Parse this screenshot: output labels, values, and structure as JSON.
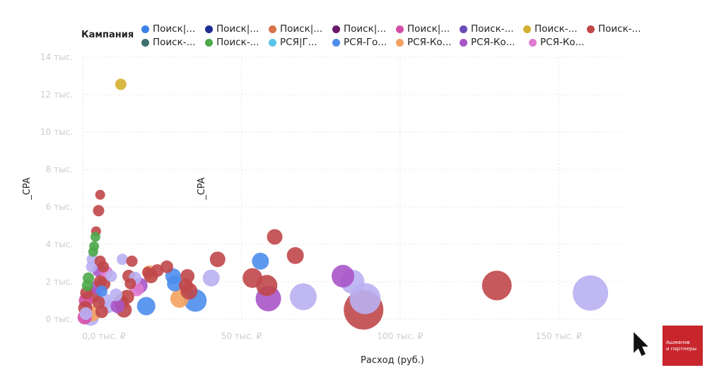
{
  "legend": {
    "title": "Кампания",
    "items": [
      {
        "label": "Поиск|...",
        "color": "#3b82e8"
      },
      {
        "label": "Поиск|...",
        "color": "#1f2f8f"
      },
      {
        "label": "Поиск|...",
        "color": "#d9734a"
      },
      {
        "label": "Поиск|...",
        "color": "#6a1a6a"
      },
      {
        "label": "Поиск|...",
        "color": "#d44ea7"
      },
      {
        "label": "Поиск-...",
        "color": "#6a4bb8"
      },
      {
        "label": "Поиск-...",
        "color": "#d4b030"
      },
      {
        "label": "Поиск-...",
        "color": "#c0474a"
      },
      {
        "label": "Поиск-...",
        "color": "#3e7070"
      },
      {
        "label": "Поиск-...",
        "color": "#4ca84a"
      },
      {
        "label": "РСЯ|Г...",
        "color": "#5cc4e8"
      },
      {
        "label": "РСЯ-Го...",
        "color": "#4d8ded"
      },
      {
        "label": "РСЯ-Ко...",
        "color": "#f4a261"
      },
      {
        "label": "РСЯ-Ко...",
        "color": "#a855c8"
      },
      {
        "label": "РСЯ-Ко...",
        "color": "#e07ad0"
      }
    ]
  },
  "logo": {
    "line1": "Ашманов",
    "line2": "и партнеры"
  },
  "chart_data": {
    "type": "scatter",
    "xlabel": "Расход (руб.)",
    "ylabel": "_CPA",
    "inner_label": "_CPA",
    "xlim": [
      0,
      170000
    ],
    "ylim": [
      0,
      14000
    ],
    "xticks": [
      {
        "value": 0,
        "label": "0,0 тыс. ₽"
      },
      {
        "value": 50000,
        "label": "50 тыс. ₽"
      },
      {
        "value": 100000,
        "label": "100 тыс. ₽"
      },
      {
        "value": 150000,
        "label": "150 тыс. ₽"
      }
    ],
    "yticks": [
      {
        "value": 0,
        "label": "0 тыс."
      },
      {
        "value": 2000,
        "label": "2 тыс."
      },
      {
        "value": 4000,
        "label": "4 тыс."
      },
      {
        "value": 6000,
        "label": "6 тыс."
      },
      {
        "value": 8000,
        "label": "8 тыс."
      },
      {
        "value": 10000,
        "label": "10 тыс."
      },
      {
        "value": 12000,
        "label": "12 тыс."
      },
      {
        "value": 14000,
        "label": "14 тыс."
      }
    ],
    "grid": true,
    "legend_position": "top",
    "points": [
      {
        "x": 12000,
        "y": 12550,
        "size": 8,
        "color": "#d4b030"
      },
      {
        "x": 5500,
        "y": 6650,
        "size": 7,
        "color": "#c0474a"
      },
      {
        "x": 5000,
        "y": 5800,
        "size": 8,
        "color": "#c0474a"
      },
      {
        "x": 4200,
        "y": 4700,
        "size": 7,
        "color": "#c0474a"
      },
      {
        "x": 4000,
        "y": 4400,
        "size": 7,
        "color": "#4ca84a"
      },
      {
        "x": 3600,
        "y": 3900,
        "size": 7,
        "color": "#4ca84a"
      },
      {
        "x": 3300,
        "y": 3600,
        "size": 7,
        "color": "#4ca84a"
      },
      {
        "x": 3000,
        "y": 3200,
        "size": 8,
        "color": "#b9b0f2"
      },
      {
        "x": 2800,
        "y": 2800,
        "size": 8,
        "color": "#b9b0f2"
      },
      {
        "x": 1800,
        "y": 2200,
        "size": 8,
        "color": "#4ca84a"
      },
      {
        "x": 1500,
        "y": 1800,
        "size": 8,
        "color": "#4ca84a"
      },
      {
        "x": 1200,
        "y": 1400,
        "size": 9,
        "color": "#c0474a"
      },
      {
        "x": 1000,
        "y": 1000,
        "size": 10,
        "color": "#d44ea7"
      },
      {
        "x": 800,
        "y": 600,
        "size": 10,
        "color": "#c0474a"
      },
      {
        "x": 1000,
        "y": 300,
        "size": 9,
        "color": "#b9b0f2"
      },
      {
        "x": 600,
        "y": 100,
        "size": 10,
        "color": "#d44ea7"
      },
      {
        "x": 5500,
        "y": 3100,
        "size": 8,
        "color": "#c0474a"
      },
      {
        "x": 6500,
        "y": 2800,
        "size": 8,
        "color": "#c0474a"
      },
      {
        "x": 5000,
        "y": 2600,
        "size": 9,
        "color": "#a855c8"
      },
      {
        "x": 7500,
        "y": 2500,
        "size": 9,
        "color": "#e07ad0"
      },
      {
        "x": 9000,
        "y": 2300,
        "size": 8,
        "color": "#b9b0f2"
      },
      {
        "x": 5500,
        "y": 2000,
        "size": 9,
        "color": "#c0474a"
      },
      {
        "x": 6500,
        "y": 1900,
        "size": 10,
        "color": "#c0474a"
      },
      {
        "x": 4500,
        "y": 1700,
        "size": 10,
        "color": "#a855c8"
      },
      {
        "x": 6000,
        "y": 1500,
        "size": 8,
        "color": "#4d8ded"
      },
      {
        "x": 3500,
        "y": 1300,
        "size": 11,
        "color": "#c0474a"
      },
      {
        "x": 5000,
        "y": 900,
        "size": 9,
        "color": "#c0474a"
      },
      {
        "x": 7000,
        "y": 1000,
        "size": 10,
        "color": "#b9b0f2"
      },
      {
        "x": 8000,
        "y": 700,
        "size": 10,
        "color": "#b9b0f2"
      },
      {
        "x": 6000,
        "y": 400,
        "size": 9,
        "color": "#c0474a"
      },
      {
        "x": 3000,
        "y": 300,
        "size": 11,
        "color": "#f4a261"
      },
      {
        "x": 2500,
        "y": 100,
        "size": 12,
        "color": "#b9b0f2"
      },
      {
        "x": 12500,
        "y": 3200,
        "size": 8,
        "color": "#b9b0f2"
      },
      {
        "x": 15500,
        "y": 3100,
        "size": 8,
        "color": "#c0474a"
      },
      {
        "x": 14500,
        "y": 2300,
        "size": 9,
        "color": "#c0474a"
      },
      {
        "x": 16500,
        "y": 2200,
        "size": 9,
        "color": "#b9b0f2"
      },
      {
        "x": 15000,
        "y": 1900,
        "size": 8,
        "color": "#c0474a"
      },
      {
        "x": 18000,
        "y": 1800,
        "size": 11,
        "color": "#a855c8"
      },
      {
        "x": 17000,
        "y": 1600,
        "size": 10,
        "color": "#e07ad0"
      },
      {
        "x": 10500,
        "y": 1300,
        "size": 9,
        "color": "#b9b0f2"
      },
      {
        "x": 14000,
        "y": 1200,
        "size": 10,
        "color": "#c0474a"
      },
      {
        "x": 12000,
        "y": 900,
        "size": 11,
        "color": "#c0474a"
      },
      {
        "x": 11000,
        "y": 700,
        "size": 10,
        "color": "#a855c8"
      },
      {
        "x": 13000,
        "y": 500,
        "size": 11,
        "color": "#c0474a"
      },
      {
        "x": 20500,
        "y": 2500,
        "size": 8,
        "color": "#c0474a"
      },
      {
        "x": 21000,
        "y": 2500,
        "size": 10,
        "color": "#f4a261"
      },
      {
        "x": 21500,
        "y": 2300,
        "size": 10,
        "color": "#c0474a"
      },
      {
        "x": 23500,
        "y": 2600,
        "size": 9,
        "color": "#c0474a"
      },
      {
        "x": 26500,
        "y": 2800,
        "size": 9,
        "color": "#c0474a"
      },
      {
        "x": 28500,
        "y": 2300,
        "size": 11,
        "color": "#4d8ded"
      },
      {
        "x": 29000,
        "y": 1900,
        "size": 11,
        "color": "#4d8ded"
      },
      {
        "x": 20000,
        "y": 700,
        "size": 13,
        "color": "#4d8ded"
      },
      {
        "x": 30500,
        "y": 1100,
        "size": 13,
        "color": "#f4a261"
      },
      {
        "x": 33000,
        "y": 2300,
        "size": 10,
        "color": "#c0474a"
      },
      {
        "x": 32500,
        "y": 1800,
        "size": 10,
        "color": "#c0474a"
      },
      {
        "x": 33500,
        "y": 1500,
        "size": 12,
        "color": "#c0474a"
      },
      {
        "x": 35500,
        "y": 1000,
        "size": 16,
        "color": "#4d8ded"
      },
      {
        "x": 40500,
        "y": 2200,
        "size": 12,
        "color": "#b9b0f2"
      },
      {
        "x": 42500,
        "y": 3200,
        "size": 11,
        "color": "#c0474a"
      },
      {
        "x": 56000,
        "y": 3100,
        "size": 12,
        "color": "#4d8ded"
      },
      {
        "x": 53500,
        "y": 2200,
        "size": 14,
        "color": "#c0474a"
      },
      {
        "x": 58000,
        "y": 1800,
        "size": 15,
        "color": "#c0474a"
      },
      {
        "x": 58500,
        "y": 1100,
        "size": 18,
        "color": "#a855c8"
      },
      {
        "x": 60500,
        "y": 4400,
        "size": 11,
        "color": "#c0474a"
      },
      {
        "x": 67000,
        "y": 3400,
        "size": 12,
        "color": "#c0474a"
      },
      {
        "x": 69500,
        "y": 1200,
        "size": 19,
        "color": "#b9b0f2"
      },
      {
        "x": 82000,
        "y": 2300,
        "size": 16,
        "color": "#a855c8"
      },
      {
        "x": 85000,
        "y": 2000,
        "size": 17,
        "color": "#b9b0f2"
      },
      {
        "x": 88500,
        "y": 500,
        "size": 28,
        "color": "#c0474a"
      },
      {
        "x": 89000,
        "y": 1100,
        "size": 22,
        "color": "#b9b0f2"
      },
      {
        "x": 130500,
        "y": 1800,
        "size": 21,
        "color": "#c0474a"
      },
      {
        "x": 160000,
        "y": 1400,
        "size": 25,
        "color": "#b9b0f2"
      }
    ]
  }
}
